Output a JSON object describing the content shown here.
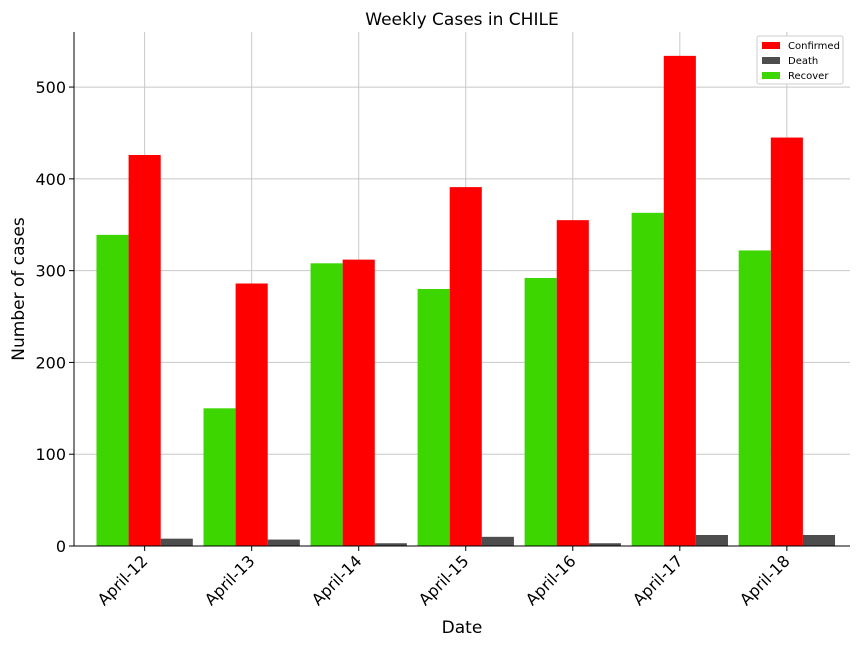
{
  "chart_data": {
    "type": "bar",
    "title": "Weekly Cases in CHILE",
    "xlabel": "Date",
    "ylabel": "Number of cases",
    "categories": [
      "April-12",
      "April-13",
      "April-14",
      "April-15",
      "April-16",
      "April-17",
      "April-18"
    ],
    "series": [
      {
        "name": "Recover",
        "color": "#3dd600",
        "values": [
          339,
          150,
          308,
          280,
          292,
          363,
          322
        ]
      },
      {
        "name": "Confirmed",
        "color": "#ff0000",
        "values": [
          426,
          286,
          312,
          391,
          355,
          534,
          445
        ]
      },
      {
        "name": "Death",
        "color": "#4d4d4d",
        "values": [
          8,
          7,
          3,
          10,
          3,
          12,
          12
        ]
      }
    ],
    "legend_order": [
      "Confirmed",
      "Death",
      "Recover"
    ],
    "yticks": [
      0,
      100,
      200,
      300,
      400,
      500
    ],
    "ylim": [
      0,
      560
    ],
    "grid": true,
    "legend_position": "top-right"
  }
}
